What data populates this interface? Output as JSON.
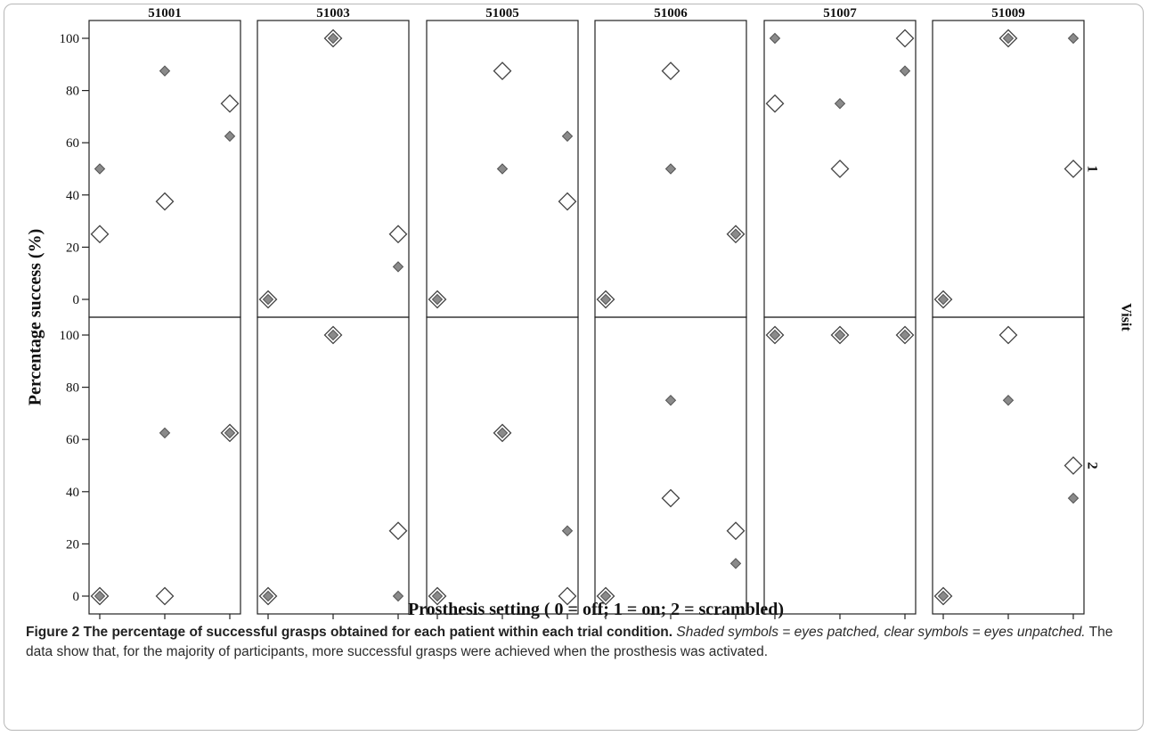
{
  "chart_data": {
    "type": "scatter",
    "xlabel": "Prosthesis setting ( 0 = off; 1 = on; 2 = scrambled)",
    "ylabel": "Percentage success (%)",
    "row_facet_label": "Visit",
    "x_ticks": [
      "0",
      "1",
      "2"
    ],
    "y_ticks": [
      "0",
      "20",
      "40",
      "60",
      "80",
      "100"
    ],
    "ylim": [
      0,
      100
    ],
    "xlim": [
      0,
      2
    ],
    "legend": "none",
    "grid": false,
    "columns": [
      "51001",
      "51003",
      "51005",
      "51006",
      "51007",
      "51009"
    ],
    "rows": [
      "1",
      "2"
    ],
    "series_styles": {
      "shaded": {
        "fill": "#8a8a8a",
        "stroke": "#555555"
      },
      "clear": {
        "fill": "#ffffff",
        "stroke": "#444444"
      }
    },
    "panels": [
      {
        "patient": "51001",
        "visit": "1",
        "shaded": [
          {
            "x": 0,
            "y": 50
          },
          {
            "x": 1,
            "y": 87.5
          },
          {
            "x": 2,
            "y": 62.5
          }
        ],
        "clear": [
          {
            "x": 0,
            "y": 25
          },
          {
            "x": 1,
            "y": 37.5
          },
          {
            "x": 2,
            "y": 75
          }
        ]
      },
      {
        "patient": "51003",
        "visit": "1",
        "shaded": [
          {
            "x": 0,
            "y": 0
          },
          {
            "x": 1,
            "y": 100
          },
          {
            "x": 2,
            "y": 12.5
          }
        ],
        "clear": [
          {
            "x": 0,
            "y": 0
          },
          {
            "x": 1,
            "y": 100
          },
          {
            "x": 2,
            "y": 25
          }
        ]
      },
      {
        "patient": "51005",
        "visit": "1",
        "shaded": [
          {
            "x": 0,
            "y": 0
          },
          {
            "x": 1,
            "y": 50
          },
          {
            "x": 2,
            "y": 62.5
          }
        ],
        "clear": [
          {
            "x": 0,
            "y": 0
          },
          {
            "x": 1,
            "y": 87.5
          },
          {
            "x": 2,
            "y": 37.5
          }
        ]
      },
      {
        "patient": "51006",
        "visit": "1",
        "shaded": [
          {
            "x": 0,
            "y": 0
          },
          {
            "x": 1,
            "y": 50
          },
          {
            "x": 2,
            "y": 25
          }
        ],
        "clear": [
          {
            "x": 0,
            "y": 0
          },
          {
            "x": 1,
            "y": 87.5
          },
          {
            "x": 2,
            "y": 25
          }
        ]
      },
      {
        "patient": "51007",
        "visit": "1",
        "shaded": [
          {
            "x": 0,
            "y": 100
          },
          {
            "x": 1,
            "y": 75
          },
          {
            "x": 2,
            "y": 87.5
          }
        ],
        "clear": [
          {
            "x": 0,
            "y": 75
          },
          {
            "x": 1,
            "y": 50
          },
          {
            "x": 2,
            "y": 100
          }
        ]
      },
      {
        "patient": "51009",
        "visit": "1",
        "shaded": [
          {
            "x": 0,
            "y": 0
          },
          {
            "x": 1,
            "y": 100
          },
          {
            "x": 2,
            "y": 100
          }
        ],
        "clear": [
          {
            "x": 0,
            "y": 0
          },
          {
            "x": 1,
            "y": 100
          },
          {
            "x": 2,
            "y": 50
          }
        ]
      },
      {
        "patient": "51001",
        "visit": "2",
        "shaded": [
          {
            "x": 0,
            "y": 0
          },
          {
            "x": 1,
            "y": 62.5
          },
          {
            "x": 2,
            "y": 62.5
          }
        ],
        "clear": [
          {
            "x": 0,
            "y": 0
          },
          {
            "x": 1,
            "y": 0
          },
          {
            "x": 2,
            "y": 62.5
          }
        ]
      },
      {
        "patient": "51003",
        "visit": "2",
        "shaded": [
          {
            "x": 0,
            "y": 0
          },
          {
            "x": 1,
            "y": 100
          },
          {
            "x": 2,
            "y": 0
          }
        ],
        "clear": [
          {
            "x": 0,
            "y": 0
          },
          {
            "x": 1,
            "y": 100
          },
          {
            "x": 2,
            "y": 25
          }
        ]
      },
      {
        "patient": "51005",
        "visit": "2",
        "shaded": [
          {
            "x": 0,
            "y": 0
          },
          {
            "x": 1,
            "y": 62.5
          },
          {
            "x": 2,
            "y": 25
          }
        ],
        "clear": [
          {
            "x": 0,
            "y": 0
          },
          {
            "x": 1,
            "y": 62.5
          },
          {
            "x": 2,
            "y": 0
          }
        ]
      },
      {
        "patient": "51006",
        "visit": "2",
        "shaded": [
          {
            "x": 0,
            "y": 0
          },
          {
            "x": 1,
            "y": 75
          },
          {
            "x": 2,
            "y": 12.5
          }
        ],
        "clear": [
          {
            "x": 0,
            "y": 0
          },
          {
            "x": 1,
            "y": 37.5
          },
          {
            "x": 2,
            "y": 25
          }
        ]
      },
      {
        "patient": "51007",
        "visit": "2",
        "shaded": [
          {
            "x": 0,
            "y": 100
          },
          {
            "x": 1,
            "y": 100
          },
          {
            "x": 2,
            "y": 100
          }
        ],
        "clear": [
          {
            "x": 0,
            "y": 100
          },
          {
            "x": 1,
            "y": 100
          },
          {
            "x": 2,
            "y": 100
          }
        ]
      },
      {
        "patient": "51009",
        "visit": "2",
        "shaded": [
          {
            "x": 0,
            "y": 0
          },
          {
            "x": 1,
            "y": 75
          },
          {
            "x": 2,
            "y": 37.5
          }
        ],
        "clear": [
          {
            "x": 0,
            "y": 0
          },
          {
            "x": 1,
            "y": 100
          },
          {
            "x": 2,
            "y": 50
          }
        ]
      }
    ]
  },
  "caption": {
    "bold": "Figure 2 The percentage of successful grasps obtained for each patient within each trial condition.",
    "italic": "Shaded symbols = eyes patched, clear symbols = eyes unpatched.",
    "normal": "The data show that, for the majority of participants, more successful grasps were achieved when the prosthesis was activated."
  }
}
